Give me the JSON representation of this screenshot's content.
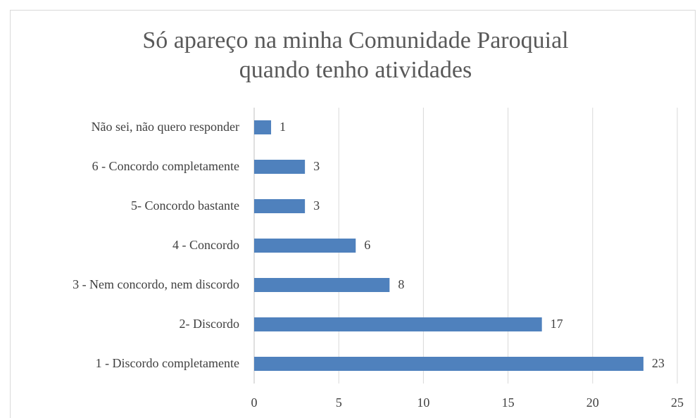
{
  "chart_data": {
    "type": "hbar",
    "title": [
      "Só apareço na minha Comunidade Paroquial",
      "quando tenho atividades"
    ],
    "categories": [
      "Não sei, não quero responder",
      "6 - Concordo completamente",
      "5- Concordo bastante",
      "4 - Concordo",
      "3 - Nem concordo, nem discordo",
      "2- Discordo",
      "1 - Discordo completamente"
    ],
    "values": [
      1,
      3,
      3,
      6,
      8,
      17,
      23
    ],
    "color": "#4f81bd",
    "xlim": [
      0,
      25
    ],
    "xticks": [
      0,
      5,
      10,
      15,
      20,
      25
    ],
    "grid": true
  }
}
